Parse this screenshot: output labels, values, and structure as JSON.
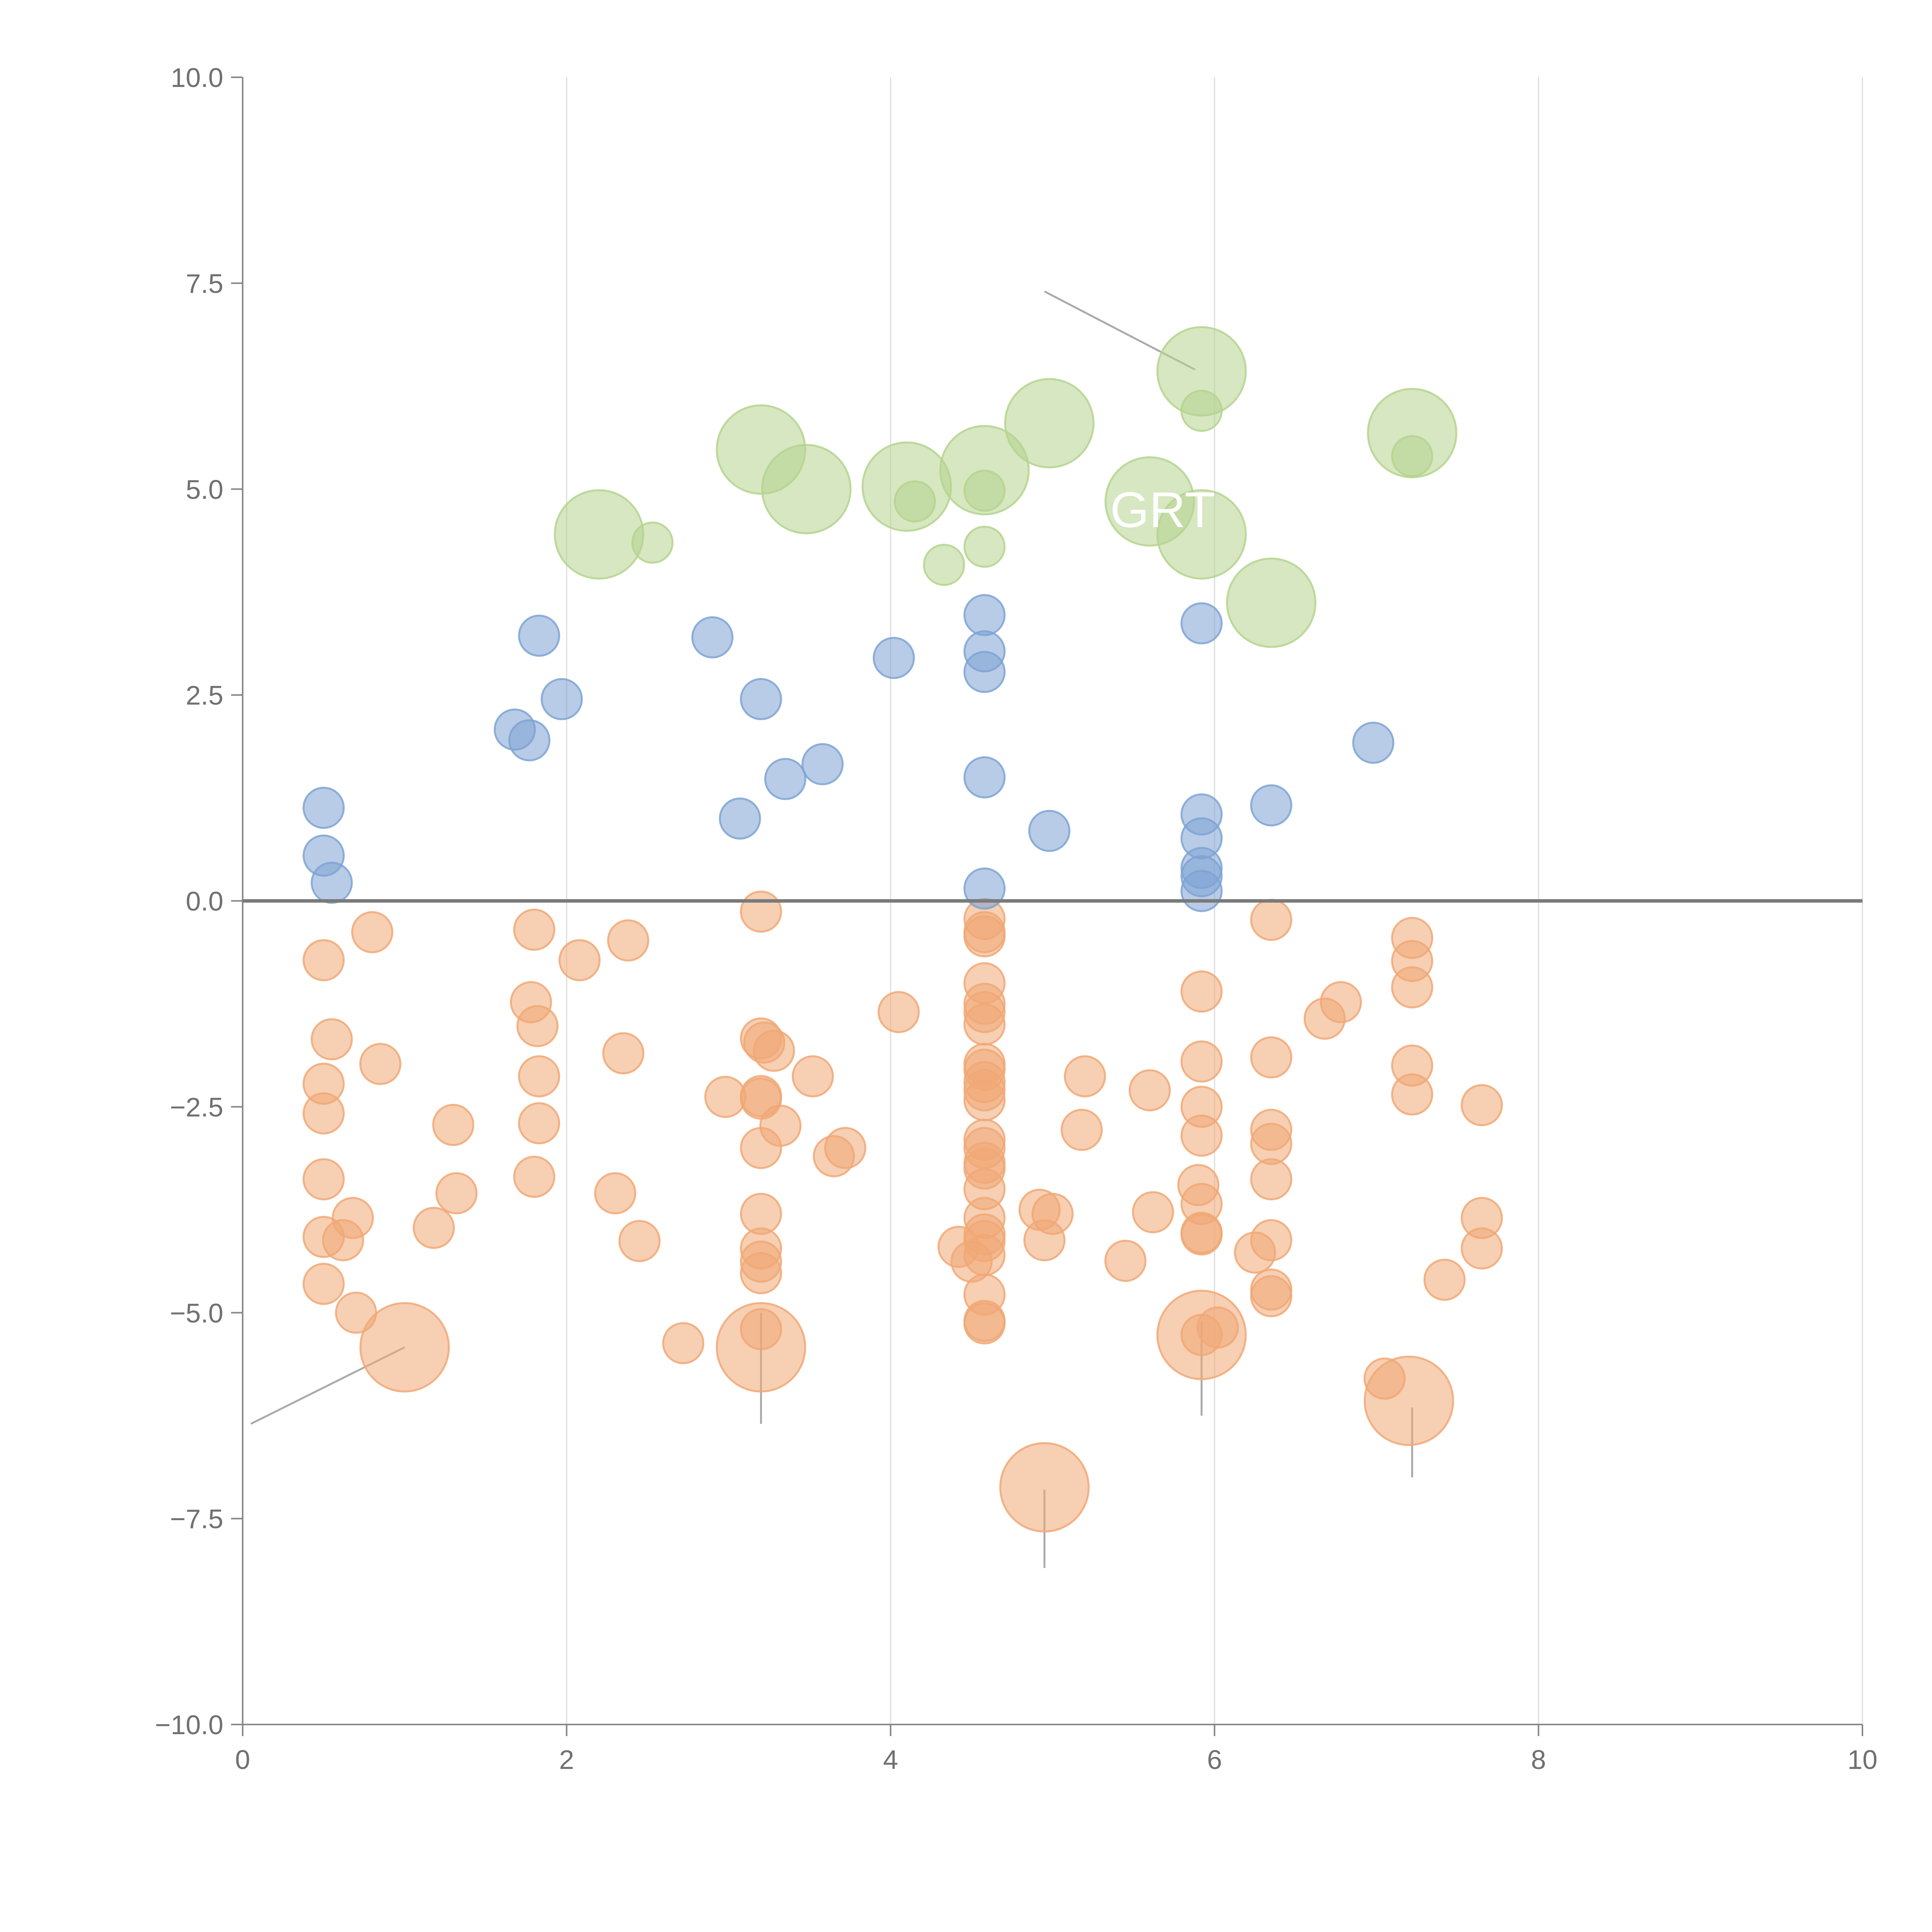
{
  "chart_data": {
    "type": "scatter",
    "title": "",
    "xlabel": "",
    "ylabel": "",
    "xlim": [
      0,
      10
    ],
    "ylim": [
      -10,
      10
    ],
    "x_ticks": [
      0,
      2,
      4,
      6,
      8,
      10
    ],
    "y_ticks": [
      -10,
      -7.5,
      -5,
      -2.5,
      0,
      2.5,
      5,
      7.5,
      10
    ],
    "x_tick_labels": [
      "0",
      "2",
      "4",
      "6",
      "8",
      "10"
    ],
    "y_tick_labels": [
      "−10.0",
      "−7.5",
      "−5.0",
      "−2.5",
      "0.0",
      "2.5",
      "5.0",
      "7.5",
      "10.0"
    ],
    "grid": {
      "x": true,
      "y": false
    },
    "zero_line": true,
    "bubble_size_unit": "relative",
    "series": [
      {
        "color": "#f0a875",
        "points": [
          [
            0.5,
            -0.72,
            1
          ],
          [
            0.8,
            -0.38,
            1
          ],
          [
            0.55,
            -1.68,
            1
          ],
          [
            0.85,
            -1.98,
            1
          ],
          [
            0.5,
            -2.22,
            1
          ],
          [
            0.5,
            -2.58,
            1
          ],
          [
            0.5,
            -3.38,
            1
          ],
          [
            0.5,
            -4.08,
            1
          ],
          [
            0.62,
            -4.12,
            1
          ],
          [
            0.68,
            -3.85,
            1
          ],
          [
            0.5,
            -4.65,
            1
          ],
          [
            0.7,
            -5.0,
            1
          ],
          [
            1.18,
            -3.97,
            1
          ],
          [
            1.32,
            -3.55,
            1
          ],
          [
            1.3,
            -2.72,
            1
          ],
          [
            1.0,
            -5.42,
            2.2
          ],
          [
            1.8,
            -0.35,
            1
          ],
          [
            1.78,
            -1.23,
            1
          ],
          [
            1.82,
            -1.52,
            1
          ],
          [
            1.83,
            -2.13,
            1
          ],
          [
            1.83,
            -2.7,
            1
          ],
          [
            1.8,
            -3.35,
            1
          ],
          [
            2.08,
            -0.72,
            1
          ],
          [
            2.38,
            -0.48,
            1
          ],
          [
            2.35,
            -1.85,
            1
          ],
          [
            2.3,
            -3.55,
            1
          ],
          [
            2.45,
            -4.13,
            1
          ],
          [
            2.72,
            -5.37,
            1
          ],
          [
            2.98,
            -2.38,
            1
          ],
          [
            3.2,
            -0.13,
            1
          ],
          [
            3.2,
            -1.67,
            1
          ],
          [
            3.22,
            -1.72,
            1
          ],
          [
            3.28,
            -1.82,
            1
          ],
          [
            3.2,
            -2.37,
            1
          ],
          [
            3.2,
            -2.4,
            1
          ],
          [
            3.32,
            -2.73,
            1
          ],
          [
            3.2,
            -3.0,
            1
          ],
          [
            3.2,
            -3.8,
            1
          ],
          [
            3.2,
            -4.22,
            1
          ],
          [
            3.2,
            -4.38,
            1
          ],
          [
            3.2,
            -4.52,
            1
          ],
          [
            3.2,
            -5.2,
            1
          ],
          [
            3.2,
            -5.42,
            2.2
          ],
          [
            3.52,
            -2.13,
            1
          ],
          [
            3.65,
            -3.1,
            1
          ],
          [
            3.72,
            -3.0,
            1
          ],
          [
            4.05,
            -1.35,
            1
          ],
          [
            4.42,
            -4.2,
            1
          ],
          [
            4.5,
            -4.38,
            1
          ],
          [
            4.58,
            -0.22,
            1
          ],
          [
            4.58,
            -0.38,
            1
          ],
          [
            4.58,
            -0.43,
            1
          ],
          [
            4.58,
            -1.0,
            1
          ],
          [
            4.58,
            -1.25,
            1
          ],
          [
            4.58,
            -1.35,
            1
          ],
          [
            4.58,
            -1.5,
            1
          ],
          [
            4.58,
            -1.98,
            1
          ],
          [
            4.58,
            -2.05,
            1
          ],
          [
            4.58,
            -2.2,
            1
          ],
          [
            4.58,
            -2.3,
            1
          ],
          [
            4.58,
            -2.42,
            1
          ],
          [
            4.58,
            -2.9,
            1
          ],
          [
            4.58,
            -3.0,
            1
          ],
          [
            4.58,
            -3.18,
            1
          ],
          [
            4.58,
            -3.25,
            1
          ],
          [
            4.58,
            -3.5,
            1
          ],
          [
            4.58,
            -3.85,
            1
          ],
          [
            4.58,
            -4.05,
            1
          ],
          [
            4.58,
            -4.13,
            1
          ],
          [
            4.58,
            -4.3,
            1
          ],
          [
            4.58,
            -4.78,
            1
          ],
          [
            4.58,
            -5.1,
            1
          ],
          [
            4.58,
            -5.13,
            1
          ],
          [
            4.92,
            -3.75,
            1
          ],
          [
            5.0,
            -3.8,
            1
          ],
          [
            4.95,
            -4.12,
            1
          ],
          [
            4.95,
            -7.12,
            2.2
          ],
          [
            5.2,
            -2.13,
            1
          ],
          [
            5.18,
            -2.78,
            1
          ],
          [
            5.45,
            -4.37,
            1
          ],
          [
            5.6,
            -2.3,
            1
          ],
          [
            5.62,
            -3.78,
            1
          ],
          [
            5.92,
            -1.1,
            1
          ],
          [
            5.92,
            -1.95,
            1
          ],
          [
            5.92,
            -2.5,
            1
          ],
          [
            5.92,
            -2.85,
            1
          ],
          [
            5.9,
            -3.45,
            1
          ],
          [
            5.92,
            -3.68,
            1
          ],
          [
            5.92,
            -4.03,
            1
          ],
          [
            5.92,
            -4.05,
            1
          ],
          [
            5.92,
            -5.27,
            1
          ],
          [
            6.02,
            -5.18,
            1
          ],
          [
            5.92,
            -5.27,
            2.2
          ],
          [
            6.25,
            -4.27,
            1
          ],
          [
            6.35,
            -0.23,
            1
          ],
          [
            6.35,
            -1.9,
            1
          ],
          [
            6.35,
            -2.78,
            1
          ],
          [
            6.35,
            -2.95,
            1
          ],
          [
            6.35,
            -3.38,
            1
          ],
          [
            6.35,
            -4.12,
            1
          ],
          [
            6.35,
            -4.72,
            1
          ],
          [
            6.35,
            -4.8,
            1
          ],
          [
            6.68,
            -1.43,
            1
          ],
          [
            6.78,
            -1.23,
            1
          ],
          [
            7.05,
            -5.8,
            1
          ],
          [
            7.22,
            -0.45,
            1
          ],
          [
            7.22,
            -0.73,
            1
          ],
          [
            7.22,
            -1.05,
            1
          ],
          [
            7.22,
            -2.0,
            1
          ],
          [
            7.22,
            -2.35,
            1
          ],
          [
            7.2,
            -6.07,
            2.2
          ],
          [
            7.42,
            -4.6,
            1
          ],
          [
            7.65,
            -2.48,
            1
          ],
          [
            7.65,
            -3.85,
            1
          ],
          [
            7.65,
            -4.22,
            1
          ]
        ]
      },
      {
        "color": "#7ea3d4",
        "points": [
          [
            0.5,
            1.13,
            1
          ],
          [
            0.5,
            0.55,
            1
          ],
          [
            0.55,
            0.22,
            1
          ],
          [
            1.68,
            2.08,
            1
          ],
          [
            1.77,
            1.95,
            1
          ],
          [
            1.83,
            3.22,
            1
          ],
          [
            1.97,
            2.45,
            1
          ],
          [
            2.9,
            3.2,
            1
          ],
          [
            3.07,
            1.0,
            1
          ],
          [
            3.2,
            2.45,
            1
          ],
          [
            3.35,
            1.48,
            1
          ],
          [
            3.58,
            1.66,
            1
          ],
          [
            4.02,
            2.95,
            1
          ],
          [
            4.58,
            3.47,
            1
          ],
          [
            4.58,
            3.03,
            1
          ],
          [
            4.58,
            2.78,
            1
          ],
          [
            4.58,
            1.5,
            1
          ],
          [
            4.58,
            0.15,
            1
          ],
          [
            4.98,
            0.85,
            1
          ],
          [
            5.92,
            3.37,
            1
          ],
          [
            5.92,
            1.05,
            1
          ],
          [
            5.92,
            0.76,
            1
          ],
          [
            5.92,
            0.4,
            1
          ],
          [
            5.92,
            0.3,
            1
          ],
          [
            5.92,
            0.12,
            1
          ],
          [
            6.35,
            1.16,
            1
          ],
          [
            6.98,
            1.92,
            1
          ]
        ]
      },
      {
        "color": "#b5d38e",
        "points": [
          [
            2.2,
            4.45,
            2.2
          ],
          [
            2.53,
            4.35,
            1
          ],
          [
            3.2,
            5.48,
            2.2
          ],
          [
            3.48,
            5.0,
            2.2
          ],
          [
            4.1,
            5.03,
            2.2
          ],
          [
            4.15,
            4.85,
            1
          ],
          [
            4.33,
            4.08,
            1
          ],
          [
            4.58,
            5.23,
            2.2
          ],
          [
            4.58,
            4.98,
            1
          ],
          [
            4.58,
            4.3,
            1
          ],
          [
            4.98,
            5.8,
            2.2
          ],
          [
            5.6,
            4.85,
            2.2
          ],
          [
            5.92,
            6.43,
            2.2
          ],
          [
            5.92,
            5.95,
            1
          ],
          [
            5.92,
            4.45,
            2.2
          ],
          [
            6.35,
            3.62,
            2.2
          ],
          [
            7.22,
            5.68,
            2.2
          ],
          [
            7.22,
            5.4,
            1
          ]
        ]
      }
    ],
    "annotations": [
      {
        "text": "GRT",
        "x": 5.68,
        "y": 4.75
      }
    ]
  }
}
